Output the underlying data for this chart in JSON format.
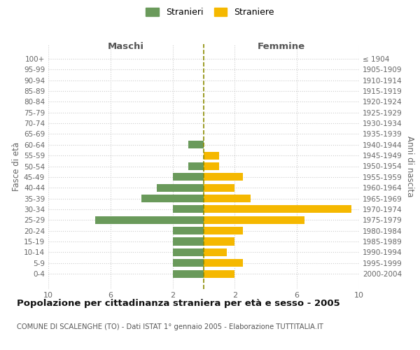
{
  "age_groups": [
    "100+",
    "95-99",
    "90-94",
    "85-89",
    "80-84",
    "75-79",
    "70-74",
    "65-69",
    "60-64",
    "55-59",
    "50-54",
    "45-49",
    "40-44",
    "35-39",
    "30-34",
    "25-29",
    "20-24",
    "15-19",
    "10-14",
    "5-9",
    "0-4"
  ],
  "birth_years": [
    "≤ 1904",
    "1905-1909",
    "1910-1914",
    "1915-1919",
    "1920-1924",
    "1925-1929",
    "1930-1934",
    "1935-1939",
    "1940-1944",
    "1945-1949",
    "1950-1954",
    "1955-1959",
    "1960-1964",
    "1965-1969",
    "1970-1974",
    "1975-1979",
    "1980-1984",
    "1985-1989",
    "1990-1994",
    "1995-1999",
    "2000-2004"
  ],
  "maschi": [
    0,
    0,
    0,
    0,
    0,
    0,
    0,
    0,
    1,
    0,
    1,
    2,
    3,
    4,
    2,
    7,
    2,
    2,
    2,
    2,
    2
  ],
  "femmine": [
    0,
    0,
    0,
    0,
    0,
    0,
    0,
    0,
    0,
    1,
    1,
    2.5,
    2,
    3,
    9.5,
    6.5,
    2.5,
    2,
    1.5,
    2.5,
    2
  ],
  "maschi_color": "#6a9a5b",
  "femmine_color": "#f5b800",
  "dashed_line_color": "#8b8b00",
  "bg_color": "#ffffff",
  "grid_color": "#cccccc",
  "title": "Popolazione per cittadinanza straniera per età e sesso - 2005",
  "subtitle": "COMUNE DI SCALENGHE (TO) - Dati ISTAT 1° gennaio 2005 - Elaborazione TUTTITALIA.IT",
  "ylabel_left": "Fasce di età",
  "ylabel_right": "Anni di nascita",
  "legend_stranieri": "Stranieri",
  "legend_straniere": "Straniere",
  "xlabel_maschi": "Maschi",
  "xlabel_femmine": "Femmine",
  "xlim": 10
}
